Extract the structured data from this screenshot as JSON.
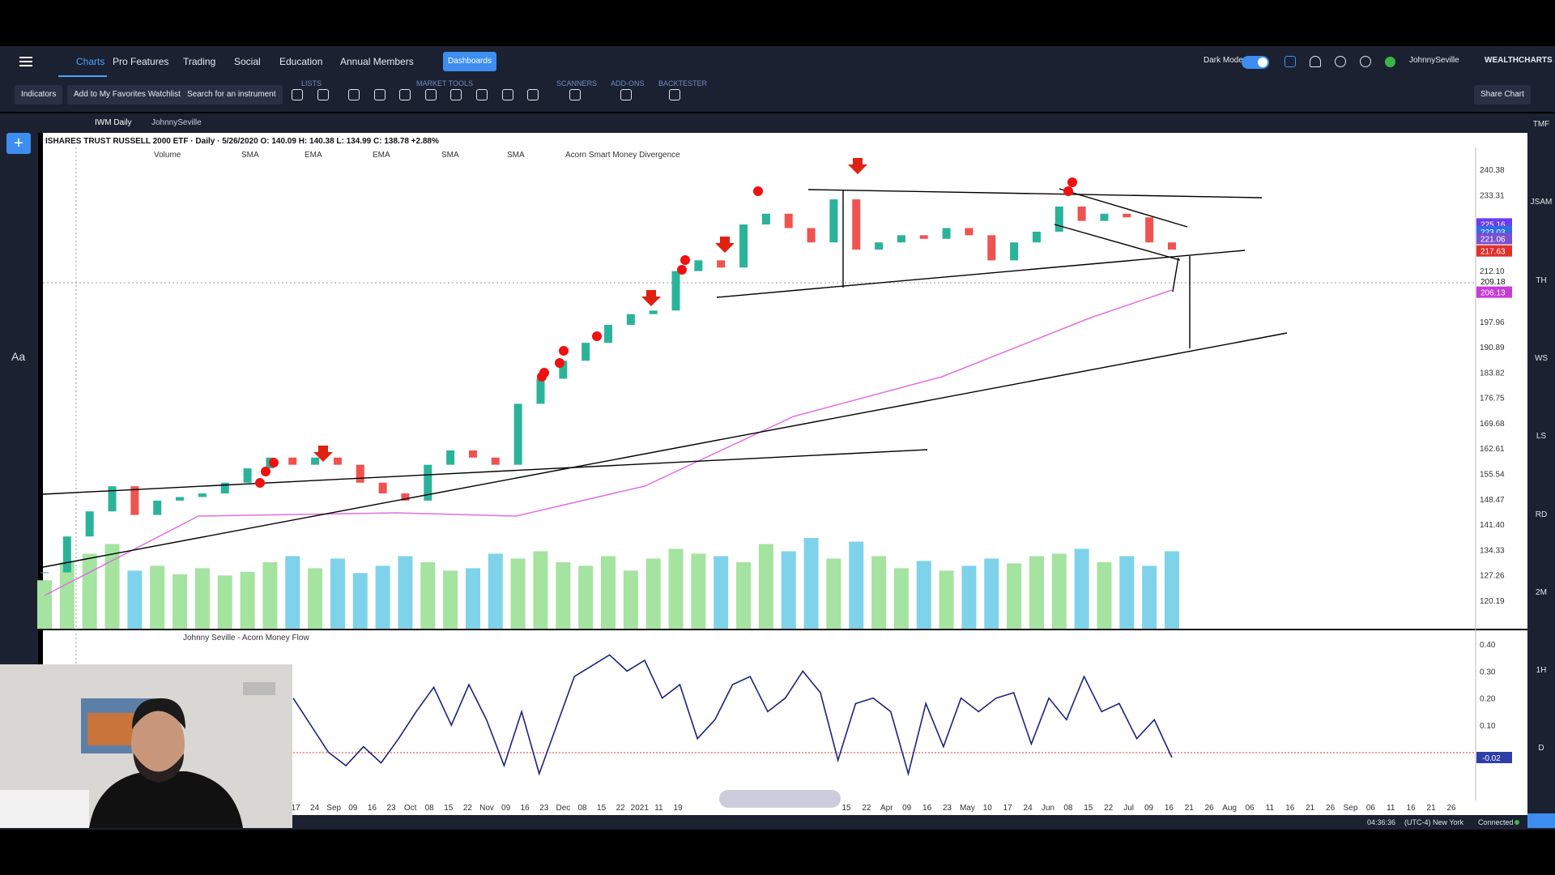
{
  "nav": {
    "items": [
      "Charts",
      "Pro Features",
      "Trading",
      "Social",
      "Education",
      "Annual Members"
    ],
    "dashboards": "Dashboards",
    "dark_mode": "Dark Mode",
    "user": "JohnnySeville",
    "brand": "WEALTHCHARTS"
  },
  "toolbar": {
    "buttons": [
      "Indicators",
      "Add to My Favorites Watchlist",
      "Search for an instrument"
    ],
    "groups": [
      "LISTS",
      "MARKET TOOLS",
      "SCANNERS",
      "ADD-ONS",
      "BACKTESTER"
    ],
    "share": "Share Chart"
  },
  "tabs": [
    "IWM Daily",
    "JohnnySeville"
  ],
  "tool_label": "Aa",
  "chart": {
    "header": "ISHARES TRUST RUSSELL 2000 ETF · Daily · 5/26/2020 O: 140.09 H: 140.38 L: 134.99 C: 138.78 +2.88%",
    "indicators": [
      "Volume",
      "SMA",
      "EMA",
      "EMA",
      "SMA",
      "SMA",
      "Acorn Smart Money Divergence"
    ],
    "price_ticks": [
      "240.38",
      "233.31",
      "212.10",
      "197.96",
      "190.89",
      "183.82",
      "176.75",
      "169.68",
      "162.61",
      "155.54",
      "148.47",
      "141.40",
      "134.33",
      "127.26",
      "120.19"
    ],
    "price_tags": [
      {
        "label": "225.16",
        "color": "#6a3cf0"
      },
      {
        "label": "223.03",
        "color": "#2e6be6"
      },
      {
        "label": "221.06",
        "color": "#7a4fd0"
      },
      {
        "label": "217.63",
        "color": "#e0302a"
      },
      {
        "label": "209.18",
        "color": "#ffffff"
      },
      {
        "label": "206.13",
        "color": "#c83ad8"
      }
    ],
    "close": [
      128,
      138,
      145,
      152,
      144,
      148,
      149,
      150,
      153,
      157,
      160,
      158,
      160,
      158,
      153,
      150,
      148,
      158,
      162,
      160,
      158,
      175,
      182,
      187,
      192,
      197,
      200,
      201,
      212,
      215,
      213,
      225,
      228,
      224,
      220,
      232,
      218,
      220,
      222,
      221,
      224,
      222,
      215,
      220,
      223,
      230,
      226,
      228,
      227,
      220,
      218
    ],
    "volume": [
      40,
      55,
      62,
      70,
      48,
      52,
      45,
      50,
      44,
      47,
      55,
      60,
      50,
      58,
      46,
      52,
      60,
      55,
      48,
      50,
      62,
      58,
      64,
      55,
      52,
      60,
      48,
      58,
      66,
      62,
      60,
      55,
      70,
      64,
      75,
      58,
      72,
      60,
      50,
      56,
      48,
      52,
      58,
      54,
      60,
      62,
      66,
      55,
      60,
      52,
      64
    ]
  },
  "lower": {
    "label": "Johnny Seville - Acorn Money Flow",
    "ticks": [
      "0.40",
      "0.30",
      "0.20",
      "0.10"
    ],
    "tag": "-0.02",
    "values": [
      0.2,
      0.1,
      0.0,
      -0.05,
      0.02,
      -0.04,
      0.05,
      0.15,
      0.24,
      0.1,
      0.25,
      0.12,
      -0.05,
      0.15,
      -0.08,
      0.1,
      0.28,
      0.32,
      0.36,
      0.3,
      0.34,
      0.2,
      0.25,
      0.05,
      0.12,
      0.25,
      0.28,
      0.15,
      0.2,
      0.3,
      0.22,
      -0.03,
      0.18,
      0.2,
      0.15,
      -0.08,
      0.18,
      0.02,
      0.2,
      0.15,
      0.2,
      0.22,
      0.03,
      0.2,
      0.12,
      0.28,
      0.15,
      0.18,
      0.05,
      0.12,
      -0.02
    ]
  },
  "dates_left": [
    "17",
    "24",
    "Sep",
    "09",
    "16",
    "23",
    "Oct",
    "08",
    "15",
    "22",
    "Nov",
    "09",
    "16",
    "23",
    "Dec",
    "08",
    "15",
    "22",
    "2021",
    "11",
    "19"
  ],
  "dates_right": [
    "15",
    "22",
    "Apr",
    "09",
    "16",
    "23",
    "May",
    "10",
    "17",
    "24",
    "Jun",
    "08",
    "15",
    "22",
    "Jul",
    "09",
    "16",
    "21",
    "26",
    "Aug",
    "06",
    "11",
    "16",
    "21",
    "26",
    "Sep",
    "06",
    "11",
    "16",
    "21",
    "26"
  ],
  "sidebar": [
    "TMF",
    "JSAM",
    "TH",
    "WS",
    "LS",
    "RD",
    "2M",
    "1H",
    "D"
  ],
  "footer": {
    "time": "04:36:36",
    "zone": "(UTC-4) New York",
    "status": "Connected"
  }
}
